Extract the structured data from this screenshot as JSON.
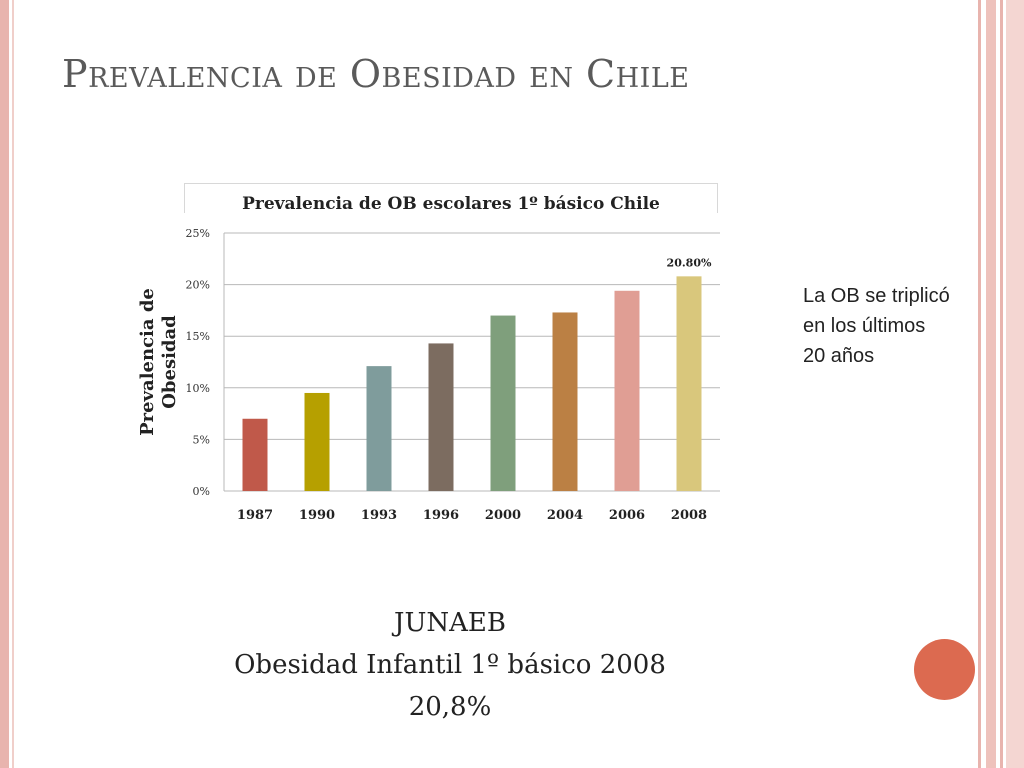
{
  "slide": {
    "title": "Prevalencia de Obesidad en Chile",
    "note": "La OB se triplicó en los últimos 20 años",
    "source_lines": [
      "JUNAEB",
      "Obesidad Infantil 1º básico 2008",
      "20,8%"
    ],
    "accent_color": "#dc6a50",
    "border_color": "#e8b4ae"
  },
  "chart_data": {
    "type": "bar",
    "title": "Prevalencia de OB escolares 1º básico Chile",
    "xlabel": "",
    "ylabel": "Prevalencia de Obesidad",
    "categories": [
      "1987",
      "1990",
      "1993",
      "1996",
      "2000",
      "2004",
      "2006",
      "2008"
    ],
    "values": [
      7.0,
      9.5,
      12.1,
      14.3,
      17.0,
      17.3,
      19.4,
      20.8
    ],
    "colors": [
      "#c0594a",
      "#b6a000",
      "#7f9c9c",
      "#7c6c60",
      "#7f9f7c",
      "#bb8044",
      "#e09e94",
      "#d9c77c"
    ],
    "data_labels": {
      "2008": "20.80%"
    },
    "ylim": [
      0,
      25
    ],
    "yticks": [
      "0%",
      "5%",
      "10%",
      "15%",
      "20%",
      "25%"
    ],
    "grid": true,
    "legend": "none"
  }
}
